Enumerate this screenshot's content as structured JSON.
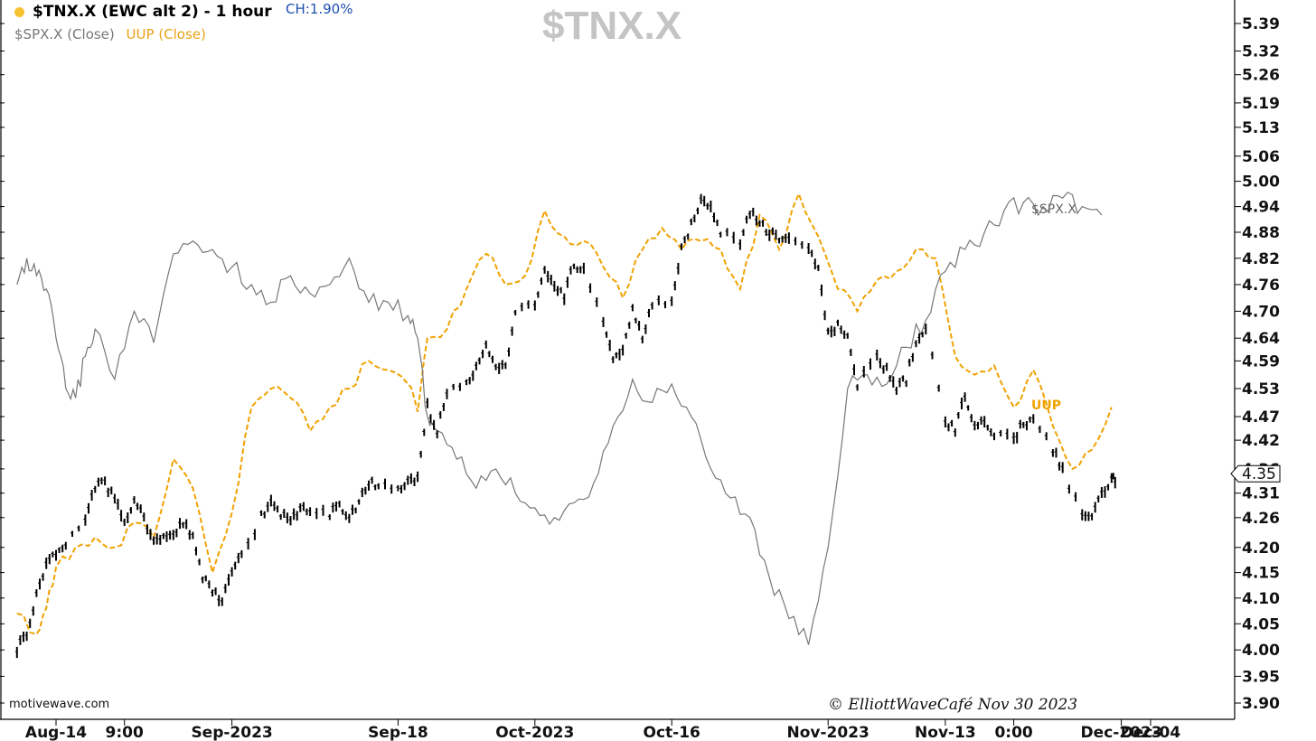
{
  "header": {
    "title": "$TNX.X (EWC alt 2) - 1 hour",
    "change": "CH:1.90%",
    "legend_spx": "$SPX.X (Close)",
    "legend_uup": "UUP (Close)"
  },
  "watermark": "$TNX.X",
  "source_label": "motivewave.com",
  "copyright": "© ElliottWaveCafé Nov 30 2023",
  "colors": {
    "bars": "#000000",
    "spx": "#777777",
    "uup": "#f0a202",
    "dot": "#f7c232",
    "change": "#1f4fb0"
  },
  "chart_data": {
    "type": "line",
    "title": "$TNX.X (EWC alt 2) - 1 hour",
    "y_axis": {
      "side": "right",
      "ticks": [
        "5.39",
        "5.32",
        "5.26",
        "5.19",
        "5.13",
        "5.06",
        "5.00",
        "4.94",
        "4.88",
        "4.82",
        "4.76",
        "4.70",
        "4.64",
        "4.59",
        "4.53",
        "4.47",
        "4.42",
        "4.36",
        "4.31",
        "4.26",
        "4.20",
        "4.15",
        "4.10",
        "4.05",
        "4.00",
        "3.95",
        "3.90"
      ],
      "range": [
        3.88,
        5.43
      ],
      "scale": "log",
      "last_value_label": "4.35"
    },
    "x_axis": {
      "ticks": [
        "Aug-14",
        "9:00",
        "Sep-2023",
        "Sep-18",
        "Oct-2023",
        "Oct-16",
        "Nov-2023",
        "Nov-13",
        "0:00",
        "Dec-2023",
        "Dec-04"
      ],
      "range": [
        "Aug-10",
        "Dec-06"
      ]
    },
    "grid": false,
    "series": [
      {
        "name": "$TNX.X",
        "style": "ohlc-bars",
        "points": [
          [
            "Aug-10",
            4.0
          ],
          [
            "Aug-11",
            4.03
          ],
          [
            "Aug-12",
            4.11
          ],
          [
            "Aug-13",
            4.17
          ],
          [
            "Aug-14",
            4.19
          ],
          [
            "Aug-15",
            4.21
          ],
          [
            "Aug-17",
            4.26
          ],
          [
            "Aug-18",
            4.32
          ],
          [
            "Aug-19",
            4.33
          ],
          [
            "Aug-20",
            4.3
          ],
          [
            "Aug-21",
            4.25
          ],
          [
            "Aug-22",
            4.3
          ],
          [
            "Aug-23",
            4.26
          ],
          [
            "Aug-24",
            4.21
          ],
          [
            "Aug-25",
            4.23
          ],
          [
            "Aug-26",
            4.23
          ],
          [
            "Aug-27",
            4.25
          ],
          [
            "Aug-28",
            4.22
          ],
          [
            "Aug-29",
            4.14
          ],
          [
            "Aug-30",
            4.11
          ],
          [
            "Aug-31",
            4.1
          ],
          [
            "Sep-01",
            4.16
          ],
          [
            "Sep-02",
            4.18
          ],
          [
            "Sep-04",
            4.26
          ],
          [
            "Sep-05",
            4.29
          ],
          [
            "Sep-06",
            4.27
          ],
          [
            "Sep-07",
            4.25
          ],
          [
            "Sep-08",
            4.28
          ],
          [
            "Sep-09",
            4.28
          ],
          [
            "Sep-11",
            4.27
          ],
          [
            "Sep-12",
            4.28
          ],
          [
            "Sep-13",
            4.26
          ],
          [
            "Sep-14",
            4.29
          ],
          [
            "Sep-15",
            4.33
          ],
          [
            "Sep-16",
            4.33
          ],
          [
            "Sep-18",
            4.32
          ],
          [
            "Sep-19",
            4.34
          ],
          [
            "Sep-20",
            4.34
          ],
          [
            "Sep-21",
            4.49
          ],
          [
            "Sep-22",
            4.44
          ],
          [
            "Sep-23",
            4.52
          ],
          [
            "Sep-25",
            4.54
          ],
          [
            "Sep-26",
            4.57
          ],
          [
            "Sep-27",
            4.63
          ],
          [
            "Sep-28",
            4.58
          ],
          [
            "Sep-29",
            4.57
          ],
          [
            "Sep-30",
            4.69
          ],
          [
            "Oct-02",
            4.72
          ],
          [
            "Oct-03",
            4.8
          ],
          [
            "Oct-04",
            4.76
          ],
          [
            "Oct-05",
            4.73
          ],
          [
            "Oct-06",
            4.81
          ],
          [
            "Oct-07",
            4.79
          ],
          [
            "Oct-09",
            4.68
          ],
          [
            "Oct-10",
            4.6
          ],
          [
            "Oct-11",
            4.62
          ],
          [
            "Oct-12",
            4.7
          ],
          [
            "Oct-13",
            4.64
          ],
          [
            "Oct-14",
            4.72
          ],
          [
            "Oct-16",
            4.72
          ],
          [
            "Oct-17",
            4.84
          ],
          [
            "Oct-18",
            4.9
          ],
          [
            "Oct-19",
            4.95
          ],
          [
            "Oct-20",
            4.93
          ],
          [
            "Oct-21",
            4.88
          ],
          [
            "Oct-23",
            4.86
          ],
          [
            "Oct-24",
            4.93
          ],
          [
            "Oct-25",
            4.9
          ],
          [
            "Oct-26",
            4.88
          ],
          [
            "Oct-27",
            4.87
          ],
          [
            "Oct-28",
            4.87
          ],
          [
            "Oct-30",
            4.84
          ],
          [
            "Oct-31",
            4.8
          ],
          [
            "Nov-01",
            4.65
          ],
          [
            "Nov-02",
            4.67
          ],
          [
            "Nov-03",
            4.65
          ],
          [
            "Nov-04",
            4.54
          ],
          [
            "Nov-06",
            4.6
          ],
          [
            "Nov-07",
            4.57
          ],
          [
            "Nov-08",
            4.53
          ],
          [
            "Nov-09",
            4.55
          ],
          [
            "Nov-10",
            4.63
          ],
          [
            "Nov-11",
            4.66
          ],
          [
            "Nov-13",
            4.46
          ],
          [
            "Nov-14",
            4.44
          ],
          [
            "Nov-15",
            4.52
          ],
          [
            "Nov-16",
            4.45
          ],
          [
            "Nov-17",
            4.46
          ],
          [
            "Nov-18",
            4.43
          ],
          [
            "Nov-20",
            4.42
          ],
          [
            "Nov-21",
            4.46
          ],
          [
            "Nov-22",
            4.46
          ],
          [
            "Nov-24",
            4.4
          ],
          [
            "Nov-25",
            4.36
          ],
          [
            "Nov-27",
            4.26
          ],
          [
            "Nov-28",
            4.27
          ],
          [
            "Nov-29",
            4.31
          ],
          [
            "Nov-30",
            4.34
          ]
        ]
      },
      {
        "name": "$SPX.X (Close)",
        "style": "line",
        "color": "#777777",
        "points": [
          [
            "Aug-10",
            4.76
          ],
          [
            "Aug-11",
            4.82
          ],
          [
            "Aug-12",
            4.78
          ],
          [
            "Aug-13",
            4.75
          ],
          [
            "Aug-14",
            4.64
          ],
          [
            "Aug-15",
            4.53
          ],
          [
            "Aug-16",
            4.51
          ],
          [
            "Aug-17",
            4.6
          ],
          [
            "Aug-18",
            4.66
          ],
          [
            "Aug-20",
            4.55
          ],
          [
            "Aug-22",
            4.7
          ],
          [
            "Aug-24",
            4.63
          ],
          [
            "Aug-26",
            4.83
          ],
          [
            "Aug-28",
            4.86
          ],
          [
            "Aug-30",
            4.84
          ],
          [
            "Sep-01",
            4.8
          ],
          [
            "Sep-03",
            4.76
          ],
          [
            "Sep-05",
            4.72
          ],
          [
            "Sep-07",
            4.78
          ],
          [
            "Sep-09",
            4.74
          ],
          [
            "Sep-11",
            4.76
          ],
          [
            "Sep-13",
            4.82
          ],
          [
            "Sep-15",
            4.72
          ],
          [
            "Sep-17",
            4.72
          ],
          [
            "Sep-19",
            4.69
          ],
          [
            "Sep-20",
            4.64
          ],
          [
            "Sep-21",
            4.47
          ],
          [
            "Sep-22",
            4.44
          ],
          [
            "Sep-24",
            4.38
          ],
          [
            "Sep-26",
            4.32
          ],
          [
            "Sep-28",
            4.36
          ],
          [
            "Sep-30",
            4.31
          ],
          [
            "Oct-02",
            4.28
          ],
          [
            "Oct-04",
            4.26
          ],
          [
            "Oct-06",
            4.29
          ],
          [
            "Oct-08",
            4.33
          ],
          [
            "Oct-10",
            4.45
          ],
          [
            "Oct-12",
            4.55
          ],
          [
            "Oct-14",
            4.5
          ],
          [
            "Oct-16",
            4.54
          ],
          [
            "Oct-18",
            4.47
          ],
          [
            "Oct-20",
            4.36
          ],
          [
            "Oct-22",
            4.3
          ],
          [
            "Oct-24",
            4.26
          ],
          [
            "Oct-26",
            4.14
          ],
          [
            "Oct-28",
            4.06
          ],
          [
            "Oct-30",
            4.01
          ],
          [
            "Nov-01",
            4.2
          ],
          [
            "Nov-03",
            4.53
          ],
          [
            "Nov-05",
            4.56
          ],
          [
            "Nov-07",
            4.54
          ],
          [
            "Nov-09",
            4.62
          ],
          [
            "Nov-11",
            4.68
          ],
          [
            "Nov-13",
            4.79
          ],
          [
            "Nov-15",
            4.84
          ],
          [
            "Nov-17",
            4.88
          ],
          [
            "Nov-19",
            4.93
          ],
          [
            "Nov-21",
            4.95
          ],
          [
            "Nov-23",
            4.94
          ],
          [
            "Nov-25",
            4.96
          ],
          [
            "Nov-27",
            4.94
          ],
          [
            "Nov-29",
            4.92
          ]
        ]
      },
      {
        "name": "UUP (Close)",
        "style": "dashed-line",
        "color": "#f0a202",
        "points": [
          [
            "Aug-10",
            4.07
          ],
          [
            "Aug-12",
            4.03
          ],
          [
            "Aug-13",
            4.08
          ],
          [
            "Aug-14",
            4.16
          ],
          [
            "Aug-16",
            4.2
          ],
          [
            "Aug-18",
            4.22
          ],
          [
            "Aug-20",
            4.2
          ],
          [
            "Aug-22",
            4.25
          ],
          [
            "Aug-24",
            4.22
          ],
          [
            "Aug-26",
            4.38
          ],
          [
            "Aug-28",
            4.32
          ],
          [
            "Aug-30",
            4.15
          ],
          [
            "Sep-01",
            4.27
          ],
          [
            "Sep-03",
            4.49
          ],
          [
            "Sep-05",
            4.53
          ],
          [
            "Sep-07",
            4.51
          ],
          [
            "Sep-09",
            4.44
          ],
          [
            "Sep-11",
            4.49
          ],
          [
            "Sep-13",
            4.53
          ],
          [
            "Sep-15",
            4.59
          ],
          [
            "Sep-17",
            4.57
          ],
          [
            "Sep-19",
            4.54
          ],
          [
            "Sep-20",
            4.48
          ],
          [
            "Sep-21",
            4.64
          ],
          [
            "Sep-23",
            4.66
          ],
          [
            "Sep-25",
            4.75
          ],
          [
            "Sep-27",
            4.83
          ],
          [
            "Sep-29",
            4.76
          ],
          [
            "Oct-01",
            4.78
          ],
          [
            "Oct-03",
            4.93
          ],
          [
            "Oct-05",
            4.87
          ],
          [
            "Oct-07",
            4.86
          ],
          [
            "Oct-09",
            4.8
          ],
          [
            "Oct-11",
            4.73
          ],
          [
            "Oct-13",
            4.84
          ],
          [
            "Oct-15",
            4.89
          ],
          [
            "Oct-17",
            4.84
          ],
          [
            "Oct-19",
            4.86
          ],
          [
            "Oct-21",
            4.84
          ],
          [
            "Oct-23",
            4.75
          ],
          [
            "Oct-25",
            4.92
          ],
          [
            "Oct-27",
            4.84
          ],
          [
            "Oct-29",
            4.97
          ],
          [
            "Oct-31",
            4.87
          ],
          [
            "Nov-02",
            4.75
          ],
          [
            "Nov-04",
            4.7
          ],
          [
            "Nov-06",
            4.77
          ],
          [
            "Nov-08",
            4.79
          ],
          [
            "Nov-10",
            4.84
          ],
          [
            "Nov-12",
            4.82
          ],
          [
            "Nov-14",
            4.6
          ],
          [
            "Nov-16",
            4.56
          ],
          [
            "Nov-18",
            4.58
          ],
          [
            "Nov-20",
            4.49
          ],
          [
            "Nov-22",
            4.57
          ],
          [
            "Nov-24",
            4.45
          ],
          [
            "Nov-26",
            4.36
          ],
          [
            "Nov-28",
            4.4
          ],
          [
            "Nov-30",
            4.49
          ]
        ]
      }
    ],
    "annotations": [
      "$SPX.X",
      "UUP"
    ]
  }
}
